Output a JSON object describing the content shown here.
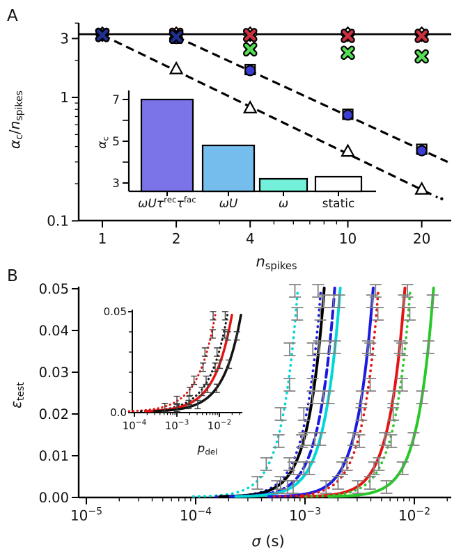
{
  "figure": {
    "panel_a_label": "A",
    "panel_b_label": "B"
  },
  "chart_data": [
    {
      "panel": "A",
      "type": "scatter",
      "x_scale": "log",
      "y_scale": "log",
      "xlim": [
        0.82,
        26.5
      ],
      "ylim": [
        0.1,
        3.8
      ],
      "xticks": {
        "major": [
          1,
          2,
          4,
          10,
          20
        ],
        "labels": [
          "1",
          "2",
          "4",
          "10",
          "20"
        ],
        "minor_values": [
          3,
          5,
          6,
          7,
          8,
          9
        ]
      },
      "yticks": {
        "major": [
          3,
          1,
          0.1
        ],
        "labels": [
          "3",
          "1",
          "0.1"
        ],
        "minor_values": [
          4,
          2,
          0.9,
          0.8,
          0.7,
          0.6,
          0.5,
          0.4,
          0.3,
          0.2
        ]
      },
      "xlabel_parts": [
        {
          "t": "n",
          "i": 1
        },
        {
          "t": "spikes",
          "sub": 1
        }
      ],
      "ylabel_parts": [
        {
          "t": "α",
          "i": 1
        },
        {
          "t": "c",
          "sub": 1
        },
        {
          "t": "/"
        },
        {
          "t": "n",
          "i": 1
        },
        {
          "t": "spikes",
          "sub": 1
        }
      ],
      "x": [
        1,
        2,
        4,
        10,
        20
      ],
      "series": [
        {
          "name": "open-diamond",
          "marker": "diamond",
          "color": "#ffffff",
          "values": [
            3.25,
            3.25,
            3.25,
            3.25,
            3.25
          ]
        },
        {
          "name": "open-square",
          "marker": "square",
          "color": "#ffffff",
          "values": [
            3.2,
            3.02,
            1.68,
            0.73,
            0.38
          ]
        },
        {
          "name": "blue-circle",
          "marker": "circle",
          "color": "#3c3cd2",
          "values": [
            3.2,
            3.0,
            1.65,
            0.72,
            0.37
          ]
        },
        {
          "name": "green-x",
          "marker": "x",
          "color": "#55dd55",
          "values": [
            3.2,
            3.1,
            2.45,
            2.3,
            2.15
          ]
        },
        {
          "name": "red-x",
          "marker": "x",
          "color": "#cc3040",
          "values": [
            3.22,
            3.22,
            3.2,
            3.15,
            3.15
          ]
        },
        {
          "name": "blue-x",
          "marker": "x",
          "color": "#20308f",
          "values": [
            3.2,
            3.1,
            null,
            null,
            null
          ]
        },
        {
          "name": "open-triangle",
          "marker": "triangle",
          "color": "#ffffff",
          "values": [
            null,
            1.7,
            0.82,
            0.365,
            0.18
          ]
        }
      ],
      "lines": [
        {
          "name": "solid-horizontal",
          "style": "solid",
          "y": 3.25
        },
        {
          "name": "dashed-upper",
          "style": "dashed",
          "from": [
            2,
            3.1
          ],
          "to": [
            25.5,
            0.3
          ]
        },
        {
          "name": "dashed-lower",
          "style": "dashed",
          "from": [
            1,
            3.2
          ],
          "to": [
            23.2,
            0.155
          ],
          "end_dot": true
        }
      ],
      "inset": {
        "type": "bar",
        "ylabel_parts": [
          {
            "t": "α",
            "i": 1
          },
          {
            "t": "c",
            "sub": 1
          }
        ],
        "yticks": {
          "major": [
            3,
            5,
            7
          ],
          "labels": [
            "3",
            "5",
            "7"
          ],
          "minor_values": [
            4,
            6
          ]
        },
        "ymin": 2.6,
        "categories_parts": [
          [
            {
              "t": "ω",
              "i": 1
            },
            {
              "t": "U",
              "i": 1
            },
            {
              "t": "τ",
              "i": 1
            },
            {
              "t": "rec",
              "sup": 1
            },
            {
              "t": "τ",
              "i": 1
            },
            {
              "t": "fac",
              "sup": 1
            }
          ],
          [
            {
              "t": "ω",
              "i": 1
            },
            {
              "t": "U",
              "i": 1
            }
          ],
          [
            {
              "t": "ω",
              "i": 1
            }
          ],
          [
            {
              "t": "static"
            }
          ]
        ],
        "values": [
          7.0,
          4.8,
          3.2,
          3.3
        ],
        "colors": [
          "#7b74e8",
          "#74bdec",
          "#72f0da",
          "#ffffff"
        ]
      }
    },
    {
      "panel": "B",
      "type": "line",
      "x_scale": "log",
      "y_scale": "linear",
      "xlim": [
        8.5e-06,
        0.022
      ],
      "ylim": [
        0,
        0.05
      ],
      "xticks": {
        "major": [
          1e-05,
          0.0001,
          0.001,
          0.01
        ],
        "exponents": [
          "−5",
          "−4",
          "−3",
          "−2"
        ],
        "base": "10",
        "minor_mantissas": [
          2,
          3,
          4,
          5,
          6,
          7,
          8,
          9
        ]
      },
      "yticks": {
        "major": [
          0,
          0.01,
          0.02,
          0.03,
          0.04,
          0.05
        ],
        "labels": [
          "0.00",
          "0.01",
          "0.02",
          "0.03",
          "0.04",
          "0.05"
        ]
      },
      "xlabel_parts": [
        {
          "t": "σ",
          "i": 1
        },
        {
          "t": " (s)"
        }
      ],
      "ylabel_parts": [
        {
          "t": "ε",
          "i": 1
        },
        {
          "t": "test",
          "sub": 1
        }
      ],
      "errorbar_color": "#828282",
      "series": [
        {
          "name": "cyan-dotted",
          "color": "#00d8d8",
          "style": "dotted",
          "sigma_at_top": 0.00086
        },
        {
          "name": "blue-dotted",
          "color": "#1a1ae0",
          "style": "dotted",
          "sigma_at_top": 0.0014
        },
        {
          "name": "black-solid",
          "color": "#000000",
          "style": "solid",
          "sigma_at_top": 0.0015
        },
        {
          "name": "blue-dashed",
          "color": "#1a1ae0",
          "style": "dashed",
          "sigma_at_top": 0.00187
        },
        {
          "name": "cyan-solid",
          "color": "#00d8d8",
          "style": "solid",
          "sigma_at_top": 0.0021
        },
        {
          "name": "blue-solid",
          "color": "#1a1ae0",
          "style": "solid",
          "sigma_at_top": 0.0042
        },
        {
          "name": "red-dotted",
          "color": "#e41414",
          "style": "dotted",
          "sigma_at_top": 0.0047
        },
        {
          "name": "red-solid",
          "color": "#e41414",
          "style": "solid",
          "sigma_at_top": 0.0082
        },
        {
          "name": "green-dotted",
          "color": "#28c828",
          "style": "dotted",
          "sigma_at_top": 0.0092
        },
        {
          "name": "green-solid",
          "color": "#28c828",
          "style": "solid",
          "sigma_at_top": 0.015
        }
      ],
      "errorbar_eps_dotted": [
        0.0035,
        0.008,
        0.0135,
        0.02,
        0.027,
        0.0355,
        0.044,
        0.0495
      ],
      "errorbar_eps_solid": [
        0.0025,
        0.007,
        0.014,
        0.024,
        0.036,
        0.047
      ],
      "inset": {
        "type": "line",
        "x_scale": "log",
        "xlim": [
          0.0001,
          0.035
        ],
        "ylim": [
          0,
          0.05
        ],
        "xticks": {
          "major": [
            0.0001,
            0.001,
            0.01
          ],
          "exponents": [
            "−4",
            "−3",
            "−2"
          ],
          "base": "10",
          "minor_mantissas": [
            2,
            3,
            4,
            5,
            6,
            7,
            8,
            9
          ]
        },
        "yticks": {
          "major": [
            0,
            0.05
          ],
          "labels": [
            "0.0",
            "0.05"
          ],
          "minor_values": [
            0.01,
            0.02,
            0.03,
            0.04
          ]
        },
        "xlabel_parts": [
          {
            "t": "p",
            "i": 1
          },
          {
            "t": "del",
            "sub": 1
          }
        ],
        "errorbar_color": "#3c3c3c",
        "series": [
          {
            "name": "red-dotted",
            "color": "#e41414",
            "style": "dotted",
            "p_at_top": 0.0083
          },
          {
            "name": "black-dotted",
            "color": "#111111",
            "style": "dotted",
            "p_at_top": 0.016
          },
          {
            "name": "red-solid",
            "color": "#e41414",
            "style": "solid",
            "p_at_top": 0.0205
          },
          {
            "name": "black-solid",
            "color": "#111111",
            "style": "solid",
            "p_at_top": 0.0335
          }
        ],
        "errorbar_eps_dotted": [
          0.0025,
          0.006,
          0.0105,
          0.016,
          0.0225,
          0.03,
          0.039,
          0.048
        ],
        "errorbar_eps_solid": [
          0.004,
          0.012,
          0.024,
          0.038
        ]
      }
    }
  ]
}
